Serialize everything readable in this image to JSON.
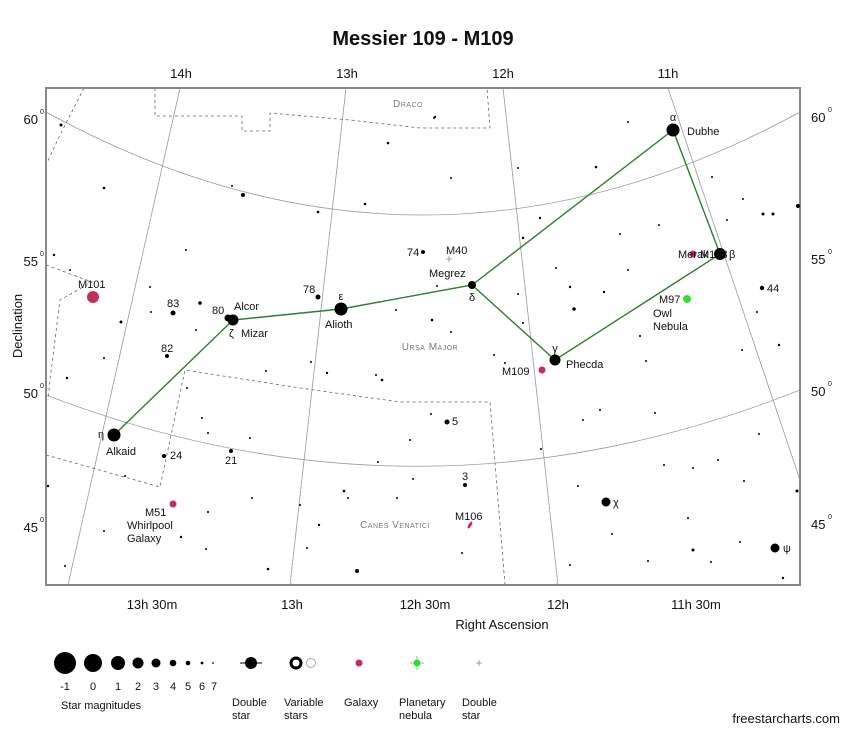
{
  "title": "Messier 109 - M109",
  "axes": {
    "x_label": "Right Ascension",
    "y_label": "Declination",
    "ra_top": [
      "14h",
      "13h",
      "12h",
      "11h"
    ],
    "ra_bottom": [
      "13h 30m",
      "13h",
      "12h 30m",
      "12h",
      "11h 30m"
    ],
    "dec_left": [
      {
        "deg": "60",
        "sup": "0"
      },
      {
        "deg": "55",
        "sup": "0"
      },
      {
        "deg": "50",
        "sup": "0"
      },
      {
        "deg": "45",
        "sup": "0"
      }
    ],
    "dec_right": [
      {
        "deg": "60",
        "sup": "0"
      },
      {
        "deg": "55",
        "sup": "0"
      },
      {
        "deg": "50",
        "sup": "0"
      },
      {
        "deg": "45",
        "sup": "0"
      }
    ]
  },
  "constellations": [
    "Draco",
    "Ursa Major",
    "Canes Venatici"
  ],
  "labels": [
    "α",
    "Dubhe",
    "Merak",
    "β",
    "M108",
    "44",
    "M97",
    "Owl",
    "Nebula",
    "γ",
    "Phecda",
    "M109",
    "M40",
    "74",
    "Megrez",
    "δ",
    "78",
    "ε",
    "Alioth",
    "Alcor",
    "80",
    "ζ",
    "Mizar",
    "83",
    "82",
    "M101",
    "η",
    "Alkaid",
    "24",
    "21",
    "5",
    "3",
    "χ",
    "M106",
    "M51",
    "Whirlpool",
    "Galaxy",
    "ψ"
  ],
  "legend": {
    "magnitudes": [
      "-1",
      "0",
      "1",
      "2",
      "3",
      "4",
      "5",
      "6",
      "7"
    ],
    "magnitudes_title": "Star magnitudes",
    "items": [
      {
        "lines": [
          "Double",
          "star"
        ]
      },
      {
        "lines": [
          "Variable",
          "stars"
        ]
      },
      {
        "lines": [
          "Galaxy"
        ]
      },
      {
        "lines": [
          "Planetary",
          "nebula"
        ]
      },
      {
        "lines": [
          "Double",
          "star"
        ]
      }
    ]
  },
  "credit": "freestarcharts.com"
}
